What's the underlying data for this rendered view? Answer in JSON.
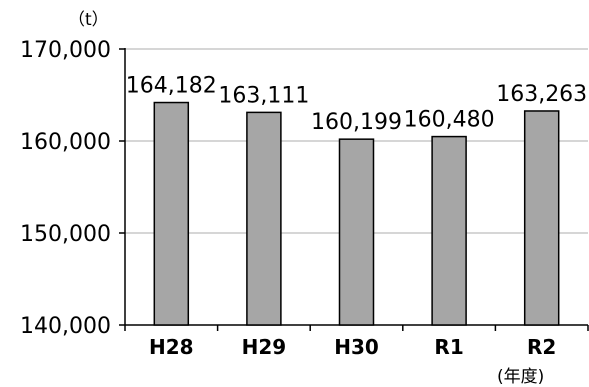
{
  "chart_data": {
    "type": "bar",
    "title": "",
    "unit_label": "（t）",
    "x_unit_label": "(年度)",
    "categories": [
      "H28",
      "H29",
      "H30",
      "R1",
      "R2"
    ],
    "values": [
      164182,
      163111,
      160199,
      160480,
      163263
    ],
    "value_labels": [
      "164,182",
      "163,111",
      "160,199",
      "160,480",
      "163,263"
    ],
    "yticks": [
      140000,
      150000,
      160000,
      170000
    ],
    "ytick_labels": [
      "140,000",
      "150,000",
      "160,000",
      "170,000"
    ],
    "ylim": [
      140000,
      170000
    ],
    "grid": true,
    "bar_color": "#a6a6a6",
    "bar_edge_color": "#000000",
    "grid_color": "#c8c8c8"
  }
}
